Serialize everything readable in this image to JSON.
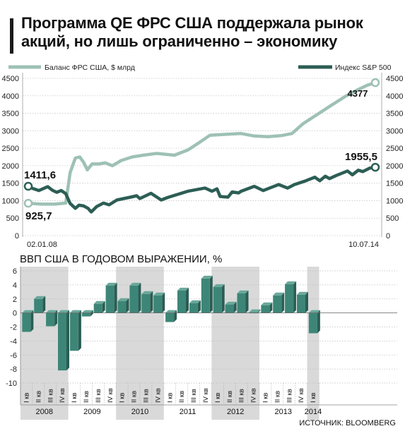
{
  "title": "Программа QE ФРС США поддержала рынок акций, но лишь ограниченно – экономику",
  "source": "ИСТОЧНИК: BLOOMBERG",
  "colors": {
    "balance": "#9ec1b4",
    "spx": "#2c5e55",
    "gdp_bar": "#3d8677",
    "gdp_bar_dark": "#2a5d54",
    "band": "#d9d9d9"
  },
  "chart_data": [
    {
      "type": "line",
      "y_ticks": [
        "4500",
        "4000",
        "3500",
        "3000",
        "2500",
        "2000",
        "1500",
        "1000",
        "500",
        "0"
      ],
      "ylim": [
        0,
        4500
      ],
      "xlim": [
        "2008-01-02",
        "2014-07-10"
      ],
      "x_start_label": "02.01.08",
      "x_end_label": "10.07.14",
      "series": [
        {
          "name": "Баланс ФРС США, $ млрд",
          "start_label": "925,7",
          "end_label": "4377",
          "points": [
            [
              "2008-01-02",
              925.7
            ],
            [
              "2008-04-01",
              900
            ],
            [
              "2008-07-01",
              900
            ],
            [
              "2008-09-15",
              930
            ],
            [
              "2008-10-15",
              1800
            ],
            [
              "2008-11-20",
              2220
            ],
            [
              "2008-12-20",
              2250
            ],
            [
              "2009-01-15",
              2100
            ],
            [
              "2009-02-10",
              1880
            ],
            [
              "2009-03-15",
              2050
            ],
            [
              "2009-05-01",
              2050
            ],
            [
              "2009-06-15",
              2080
            ],
            [
              "2009-08-01",
              2000
            ],
            [
              "2009-10-01",
              2150
            ],
            [
              "2009-12-15",
              2250
            ],
            [
              "2010-03-01",
              2300
            ],
            [
              "2010-06-01",
              2350
            ],
            [
              "2010-10-01",
              2300
            ],
            [
              "2011-01-01",
              2450
            ],
            [
              "2011-03-15",
              2650
            ],
            [
              "2011-06-01",
              2870
            ],
            [
              "2011-10-01",
              2900
            ],
            [
              "2012-01-01",
              2920
            ],
            [
              "2012-04-01",
              2850
            ],
            [
              "2012-07-01",
              2830
            ],
            [
              "2012-10-01",
              2860
            ],
            [
              "2012-12-15",
              2920
            ],
            [
              "2013-03-01",
              3200
            ],
            [
              "2013-06-01",
              3450
            ],
            [
              "2013-09-01",
              3700
            ],
            [
              "2013-12-15",
              3980
            ],
            [
              "2014-03-01",
              4150
            ],
            [
              "2014-05-15",
              4300
            ],
            [
              "2014-07-10",
              4377
            ]
          ]
        },
        {
          "name": "Индекс S&P 500",
          "start_label": "1411,6",
          "end_label": "1955,5",
          "points": [
            [
              "2008-01-02",
              1411.6
            ],
            [
              "2008-02-01",
              1350
            ],
            [
              "2008-03-15",
              1290
            ],
            [
              "2008-05-15",
              1400
            ],
            [
              "2008-06-15",
              1300
            ],
            [
              "2008-07-15",
              1240
            ],
            [
              "2008-08-15",
              1290
            ],
            [
              "2008-09-15",
              1200
            ],
            [
              "2008-10-15",
              920
            ],
            [
              "2008-11-20",
              780
            ],
            [
              "2008-12-15",
              870
            ],
            [
              "2009-01-15",
              850
            ],
            [
              "2009-02-15",
              780
            ],
            [
              "2009-03-09",
              677
            ],
            [
              "2009-04-15",
              830
            ],
            [
              "2009-06-01",
              930
            ],
            [
              "2009-07-10",
              880
            ],
            [
              "2009-09-01",
              1020
            ],
            [
              "2009-12-15",
              1110
            ],
            [
              "2010-01-15",
              1140
            ],
            [
              "2010-02-05",
              1060
            ],
            [
              "2010-04-23",
              1210
            ],
            [
              "2010-07-02",
              1020
            ],
            [
              "2010-08-15",
              1090
            ],
            [
              "2010-11-01",
              1190
            ],
            [
              "2011-01-01",
              1270
            ],
            [
              "2011-04-29",
              1360
            ],
            [
              "2011-06-15",
              1270
            ],
            [
              "2011-07-20",
              1340
            ],
            [
              "2011-08-10",
              1120
            ],
            [
              "2011-10-03",
              1100
            ],
            [
              "2011-11-01",
              1250
            ],
            [
              "2011-12-15",
              1220
            ],
            [
              "2012-01-01",
              1270
            ],
            [
              "2012-04-01",
              1410
            ],
            [
              "2012-06-01",
              1290
            ],
            [
              "2012-09-15",
              1460
            ],
            [
              "2012-11-15",
              1360
            ],
            [
              "2013-01-01",
              1460
            ],
            [
              "2013-03-15",
              1560
            ],
            [
              "2013-05-21",
              1670
            ],
            [
              "2013-06-24",
              1570
            ],
            [
              "2013-08-01",
              1700
            ],
            [
              "2013-08-30",
              1630
            ],
            [
              "2013-10-15",
              1720
            ],
            [
              "2013-12-31",
              1848
            ],
            [
              "2014-02-03",
              1740
            ],
            [
              "2014-03-15",
              1870
            ],
            [
              "2014-04-15",
              1830
            ],
            [
              "2014-06-01",
              1930
            ],
            [
              "2014-07-10",
              1955.5
            ]
          ]
        }
      ]
    },
    {
      "type": "bar",
      "title": "ВВП США В ГОДОВОМ ВЫРАЖЕНИИ, %",
      "y_ticks": [
        "6",
        "4",
        "2",
        "0",
        "-2",
        "-4",
        "-6",
        "-8",
        "-10"
      ],
      "ylim": [
        -10,
        6
      ],
      "quarter_labels": [
        "I кв",
        "II кв",
        "III кв",
        "IV кв"
      ],
      "years": [
        "2008",
        "2009",
        "2010",
        "2011",
        "2012",
        "2013",
        "2014"
      ],
      "values": [
        -2.7,
        2.0,
        -1.9,
        -8.2,
        -5.4,
        -0.5,
        1.3,
        3.9,
        1.7,
        3.9,
        2.7,
        2.5,
        -1.3,
        3.2,
        1.4,
        4.9,
        3.7,
        1.2,
        2.8,
        0.1,
        1.1,
        2.5,
        4.1,
        2.6,
        -2.9
      ]
    }
  ]
}
